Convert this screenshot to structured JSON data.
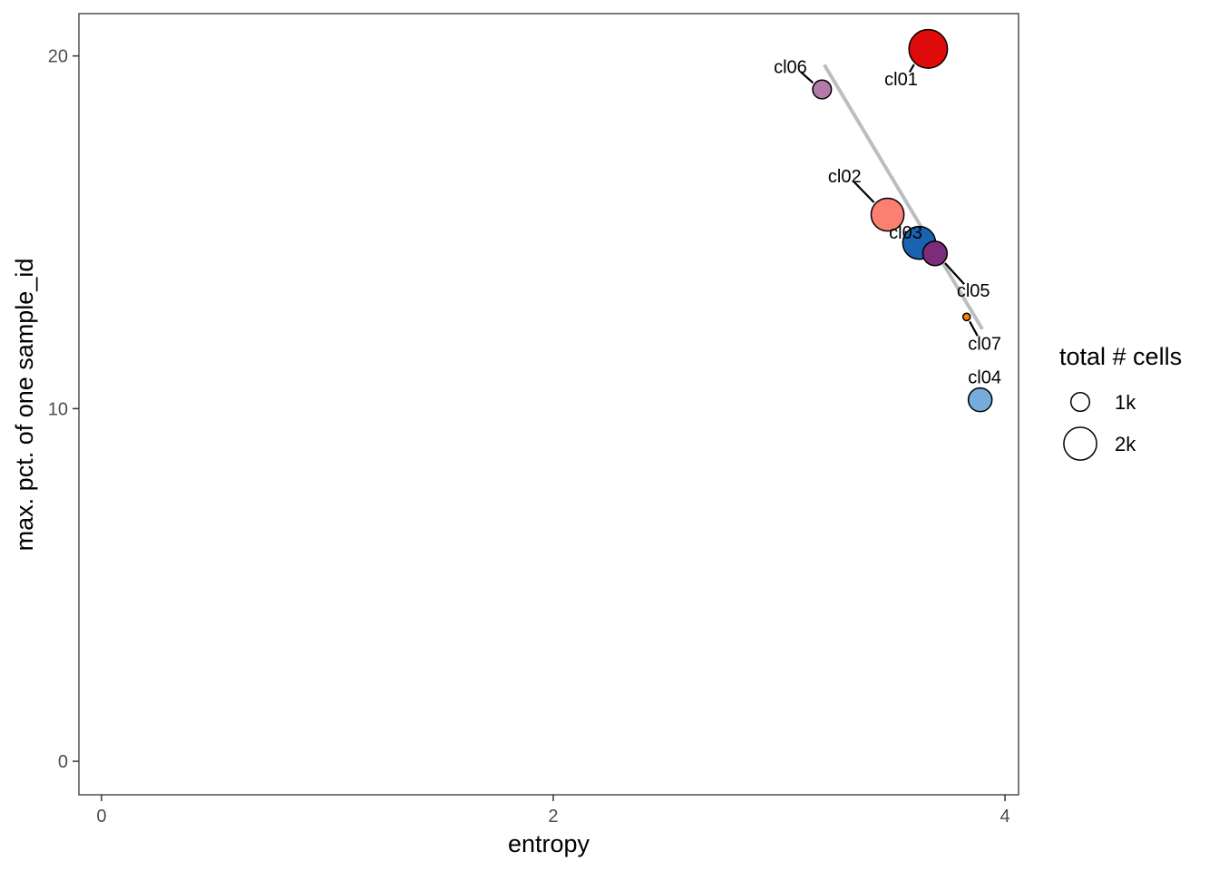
{
  "chart_data": {
    "type": "scatter",
    "xlabel": "entropy",
    "ylabel": "max. pct. of one sample_id",
    "xlim": [
      -0.1,
      4.06
    ],
    "ylim": [
      -0.95,
      21.2
    ],
    "x_ticks": [
      {
        "value": 0,
        "label": "0"
      },
      {
        "value": 2,
        "label": "2"
      },
      {
        "value": 4,
        "label": "4"
      }
    ],
    "y_ticks": [
      {
        "value": 0,
        "label": "0"
      },
      {
        "value": 10,
        "label": "10"
      },
      {
        "value": 20,
        "label": "20"
      }
    ],
    "grid": false,
    "points": [
      {
        "label": "cl01",
        "x": 3.66,
        "y": 20.2,
        "cells": 2400,
        "color": "#e00b0b",
        "label_x": 3.54,
        "label_y": 19.35
      },
      {
        "label": "cl02",
        "x": 3.48,
        "y": 15.5,
        "cells": 2000,
        "color": "#fb8072",
        "label_x": 3.29,
        "label_y": 16.6
      },
      {
        "label": "cl03",
        "x": 3.62,
        "y": 14.7,
        "cells": 2000,
        "color": "#1a63b0",
        "label_x": 3.56,
        "label_y": 15.0
      },
      {
        "label": "cl04",
        "x": 3.89,
        "y": 10.25,
        "cells": 1350,
        "color": "#75acdc",
        "label_x": 3.91,
        "label_y": 10.9
      },
      {
        "label": "cl05",
        "x": 3.69,
        "y": 14.4,
        "cells": 1400,
        "color": "#7b2d7b",
        "label_x": 3.86,
        "label_y": 13.35
      },
      {
        "label": "cl06",
        "x": 3.19,
        "y": 19.05,
        "cells": 1000,
        "color": "#b37ba8",
        "label_x": 3.05,
        "label_y": 19.7
      },
      {
        "label": "cl07",
        "x": 3.83,
        "y": 12.6,
        "cells": 200,
        "color": "#ff7f00",
        "label_x": 3.91,
        "label_y": 11.85
      }
    ],
    "trend_line": {
      "x": [
        3.2,
        3.9
      ],
      "y": [
        19.75,
        12.25
      ],
      "color": "#bdbdbd"
    },
    "legend": {
      "title": "total # cells",
      "position": "right",
      "entries": [
        {
          "label": "1k",
          "cells": 1000
        },
        {
          "label": "2k",
          "cells": 2000
        }
      ]
    }
  }
}
